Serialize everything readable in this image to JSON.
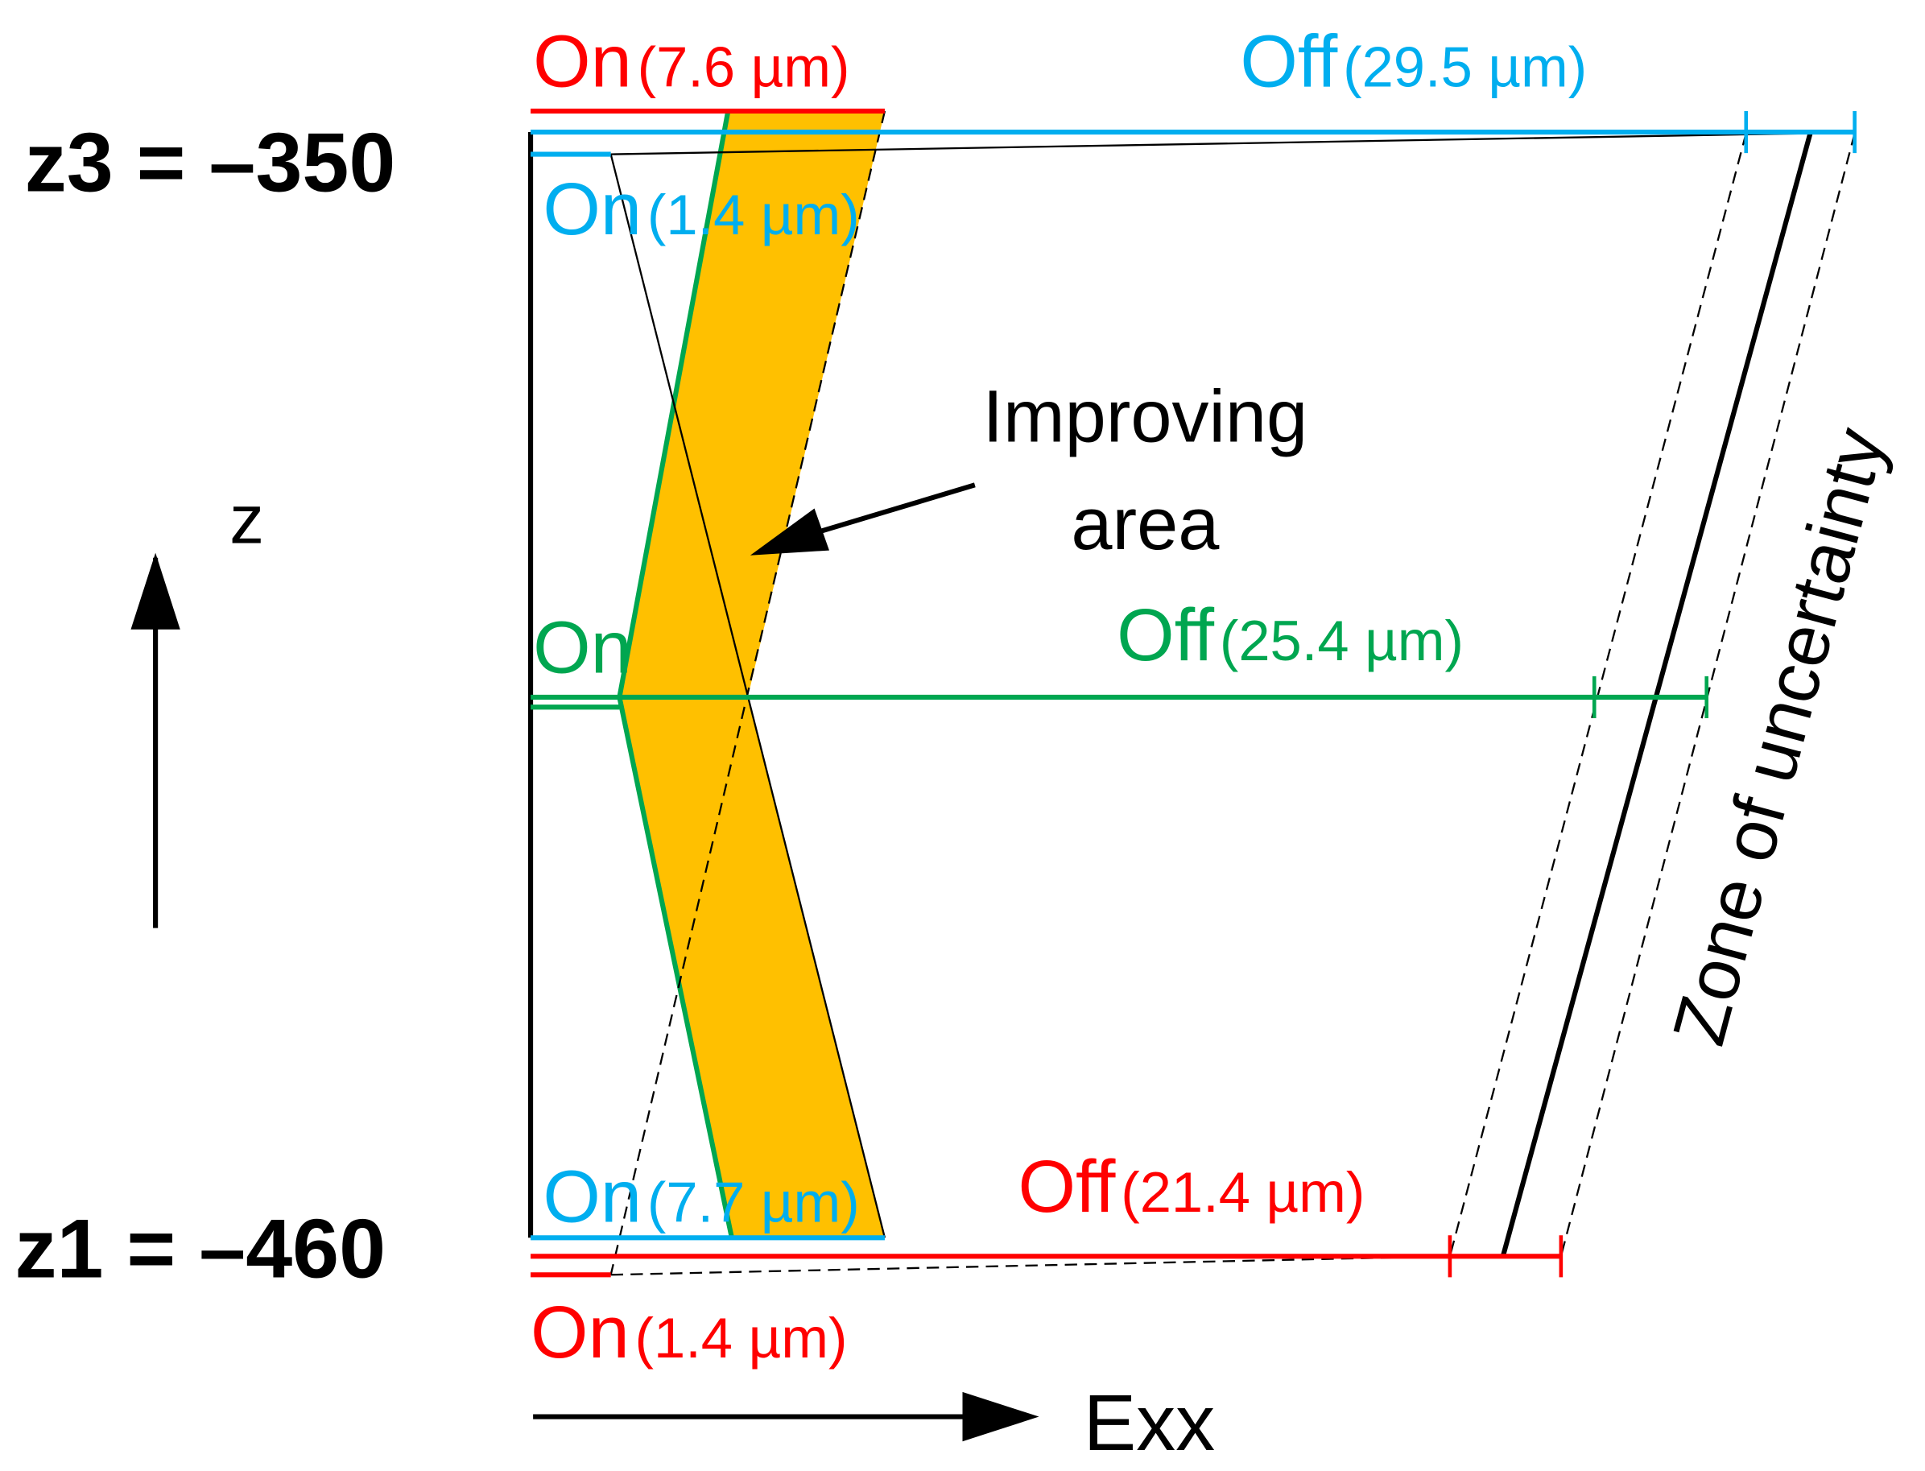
{
  "levels": [
    {
      "label": "z3 = –350"
    },
    {
      "label": "z1 = –460"
    }
  ],
  "labels": [
    {
      "state": "On",
      "value": "(7.6 µm)"
    },
    {
      "state": "Off",
      "value": "(29.5 µm)"
    },
    {
      "state": "On",
      "value": "(1.4 µm)"
    },
    {
      "state": "On"
    },
    {
      "state": "Off",
      "value": "(25.4 µm)"
    },
    {
      "state": "On",
      "value": "(7.7 µm)"
    },
    {
      "state": "Off",
      "value": "(21.4 µm)"
    },
    {
      "state": "On",
      "value": "(1.4 µm)"
    }
  ],
  "improving": [
    "Improving",
    "area"
  ],
  "axis_z": "z",
  "axis_x": "Exx",
  "zone": "Zone of uncertainty"
}
